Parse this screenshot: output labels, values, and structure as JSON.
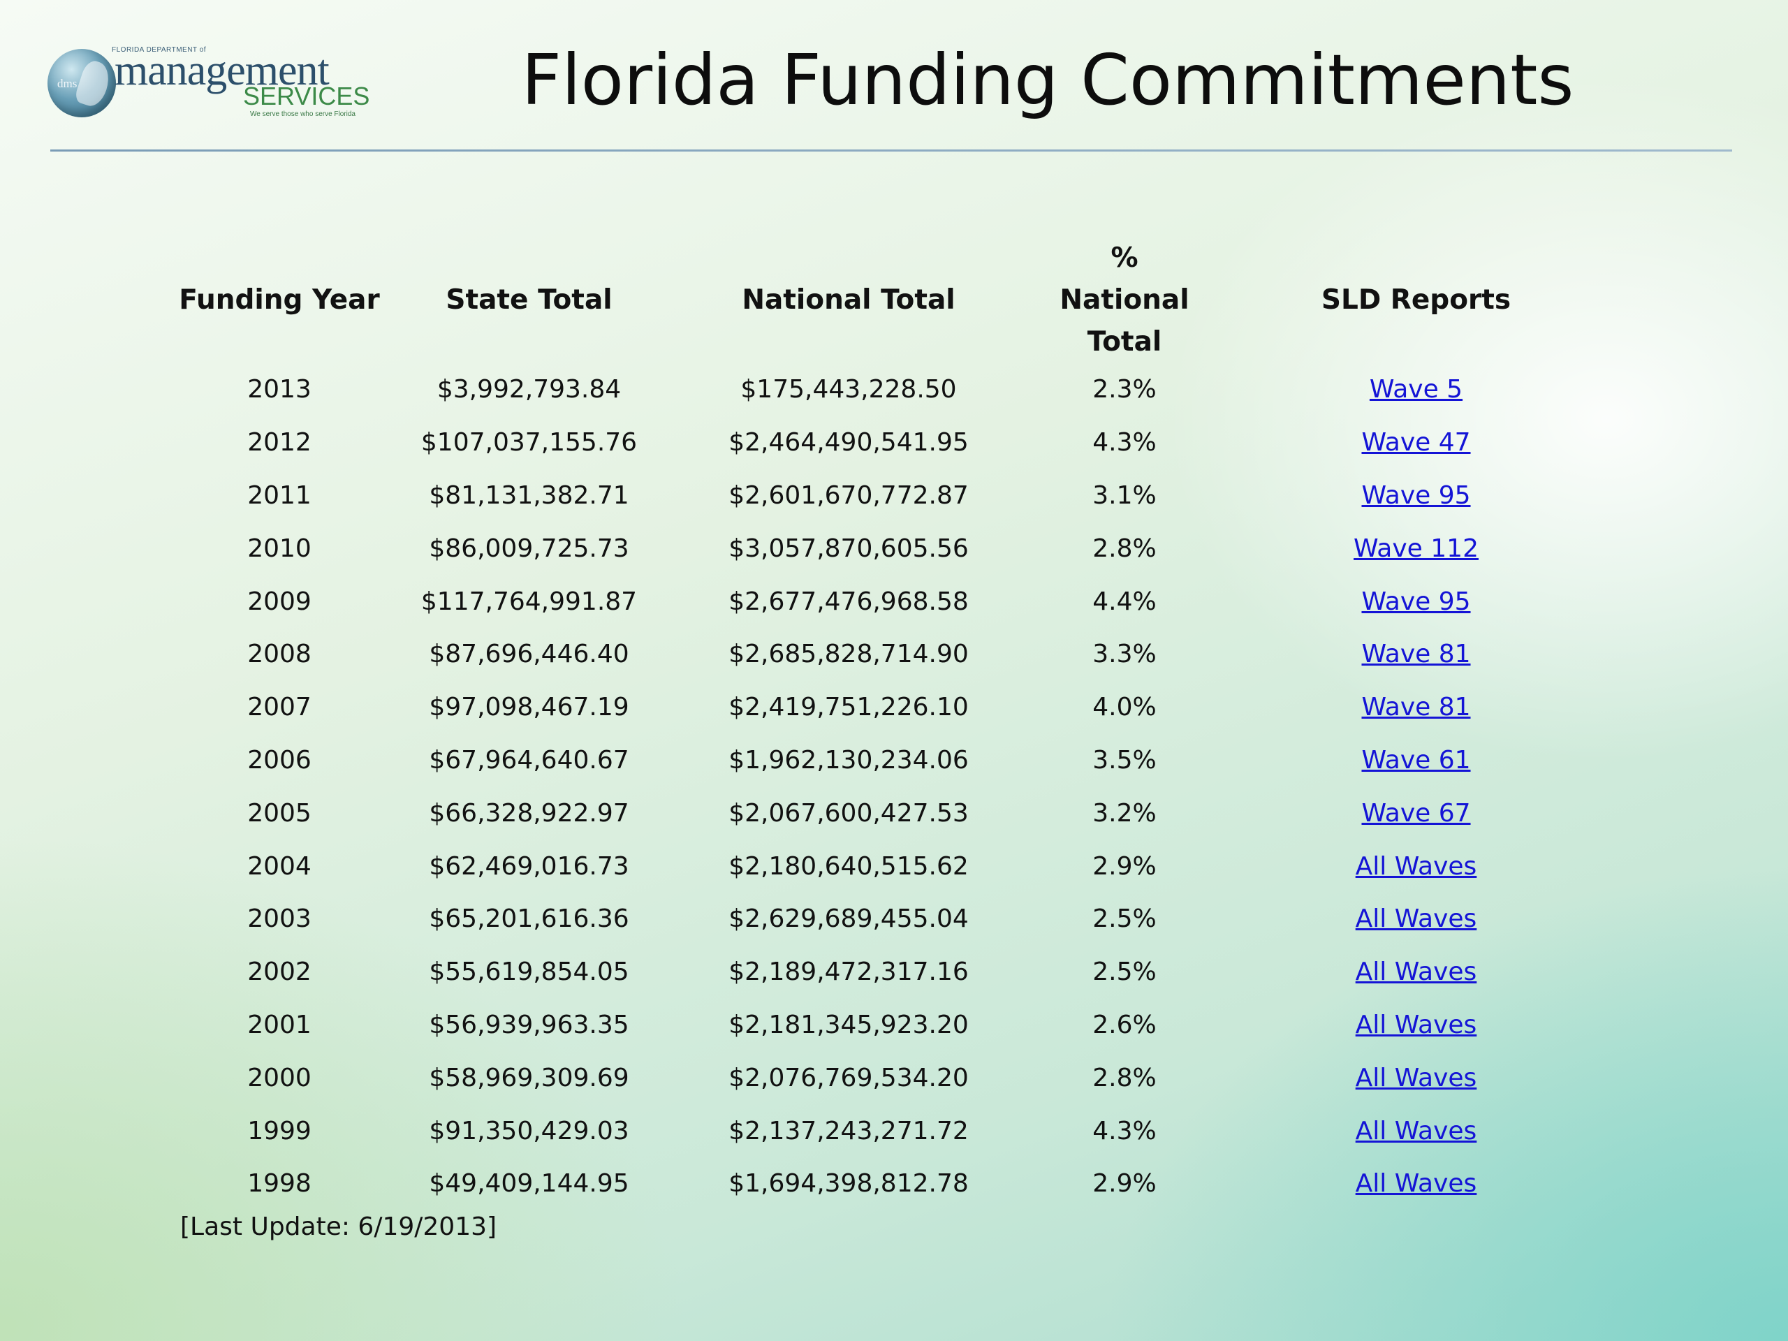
{
  "title": "Florida Funding Commitments",
  "logo": {
    "top_text": "FLORIDA DEPARTMENT of",
    "main_text": "management",
    "services_text": "SERVICES",
    "tagline": "We serve those who serve Florida",
    "badge_text": "dms"
  },
  "table": {
    "headers": {
      "funding_year": "Funding Year",
      "state_total": "State Total",
      "national_total": "National Total",
      "pct_national_line1": "% National",
      "pct_national_line2": "Total",
      "sld_reports": "SLD Reports"
    },
    "rows": [
      {
        "year": "2013",
        "state": "$3,992,793.84",
        "national": "$175,443,228.50",
        "pct": "2.3%",
        "report": "Wave 5"
      },
      {
        "year": "2012",
        "state": "$107,037,155.76",
        "national": "$2,464,490,541.95",
        "pct": "4.3%",
        "report": "Wave 47"
      },
      {
        "year": "2011",
        "state": "$81,131,382.71",
        "national": "$2,601,670,772.87",
        "pct": "3.1%",
        "report": "Wave 95"
      },
      {
        "year": "2010",
        "state": "$86,009,725.73",
        "national": "$3,057,870,605.56",
        "pct": "2.8%",
        "report": "Wave 112"
      },
      {
        "year": "2009",
        "state": "$117,764,991.87",
        "national": "$2,677,476,968.58",
        "pct": "4.4%",
        "report": "Wave 95"
      },
      {
        "year": "2008",
        "state": "$87,696,446.40",
        "national": "$2,685,828,714.90",
        "pct": "3.3%",
        "report": "Wave 81"
      },
      {
        "year": "2007",
        "state": "$97,098,467.19",
        "national": "$2,419,751,226.10",
        "pct": "4.0%",
        "report": "Wave 81"
      },
      {
        "year": "2006",
        "state": "$67,964,640.67",
        "national": "$1,962,130,234.06",
        "pct": "3.5%",
        "report": "Wave 61"
      },
      {
        "year": "2005",
        "state": "$66,328,922.97",
        "national": "$2,067,600,427.53",
        "pct": "3.2%",
        "report": "Wave 67"
      },
      {
        "year": "2004",
        "state": "$62,469,016.73",
        "national": "$2,180,640,515.62",
        "pct": "2.9%",
        "report": "All Waves"
      },
      {
        "year": "2003",
        "state": "$65,201,616.36",
        "national": "$2,629,689,455.04",
        "pct": "2.5%",
        "report": "All Waves"
      },
      {
        "year": "2002",
        "state": "$55,619,854.05",
        "national": "$2,189,472,317.16",
        "pct": "2.5%",
        "report": "All Waves"
      },
      {
        "year": "2001",
        "state": "$56,939,963.35",
        "national": "$2,181,345,923.20",
        "pct": "2.6%",
        "report": "All Waves"
      },
      {
        "year": "2000",
        "state": "$58,969,309.69",
        "national": "$2,076,769,534.20",
        "pct": "2.8%",
        "report": "All Waves"
      },
      {
        "year": "1999",
        "state": "$91,350,429.03",
        "national": "$2,137,243,271.72",
        "pct": "4.3%",
        "report": "All Waves"
      },
      {
        "year": "1998",
        "state": "$49,409,144.95",
        "national": "$1,694,398,812.78",
        "pct": "2.9%",
        "report": "All Waves"
      }
    ]
  },
  "footer": {
    "last_update": "[Last Update: 6/19/2013]"
  },
  "colors": {
    "link": "#1414d6",
    "divider": "#7a9cb6",
    "title": "#0d0d0d"
  }
}
